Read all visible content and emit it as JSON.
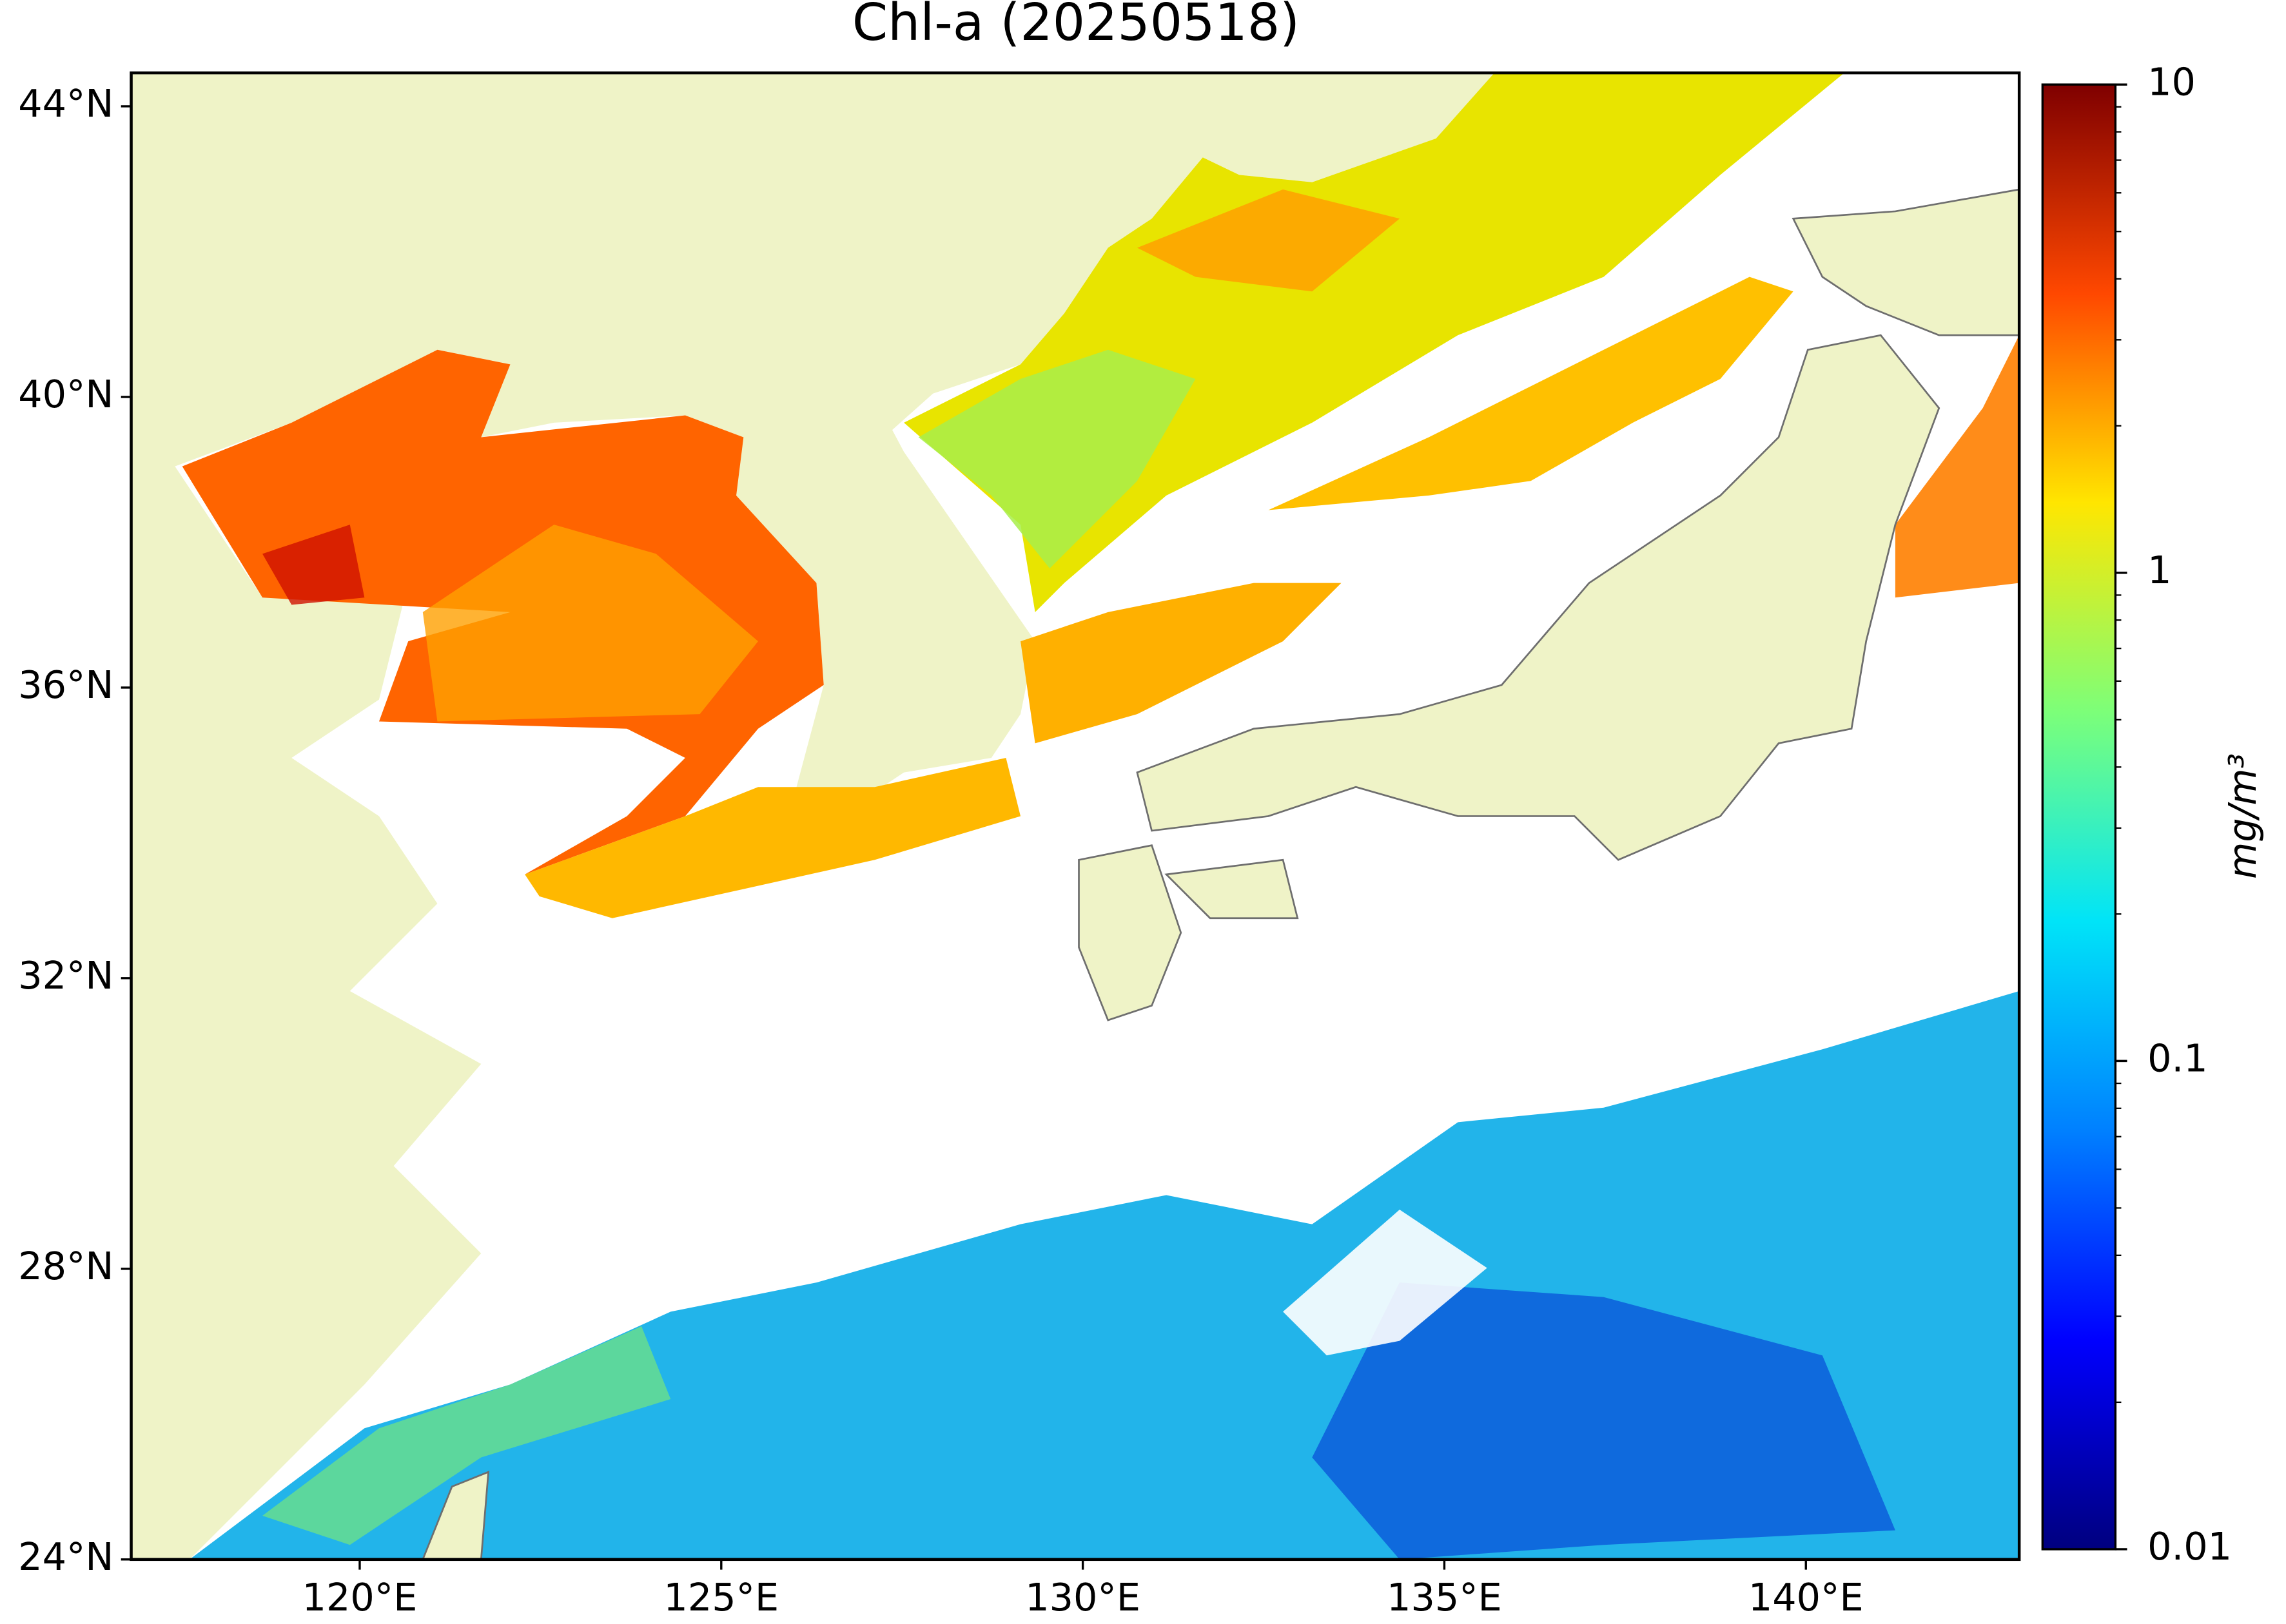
{
  "title": "Chl-a (20250518)",
  "map": {
    "xlim": [
      116.84,
      142.95
    ],
    "ylim": [
      24,
      44.46
    ],
    "xticks": [
      {
        "value": 120,
        "label": "120°E"
      },
      {
        "value": 125,
        "label": "125°E"
      },
      {
        "value": 130,
        "label": "130°E"
      },
      {
        "value": 135,
        "label": "135°E"
      },
      {
        "value": 140,
        "label": "140°E"
      }
    ],
    "yticks": [
      {
        "value": 24,
        "label": "24°N"
      },
      {
        "value": 28,
        "label": "28°N"
      },
      {
        "value": 32,
        "label": "32°N"
      },
      {
        "value": 36,
        "label": "36°N"
      },
      {
        "value": 40,
        "label": "40°N"
      },
      {
        "value": 44,
        "label": "44°N"
      }
    ]
  },
  "colorbar": {
    "label": "mg/m³",
    "scale": "log",
    "lim": [
      0.01,
      10
    ],
    "ticks": [
      0.01,
      0.1,
      1,
      10
    ],
    "colormap": [
      "#00007f",
      "#0000ff",
      "#0080ff",
      "#00e4f8",
      "#7cff79",
      "#ffe600",
      "#ff4800",
      "#7f0000"
    ]
  }
}
